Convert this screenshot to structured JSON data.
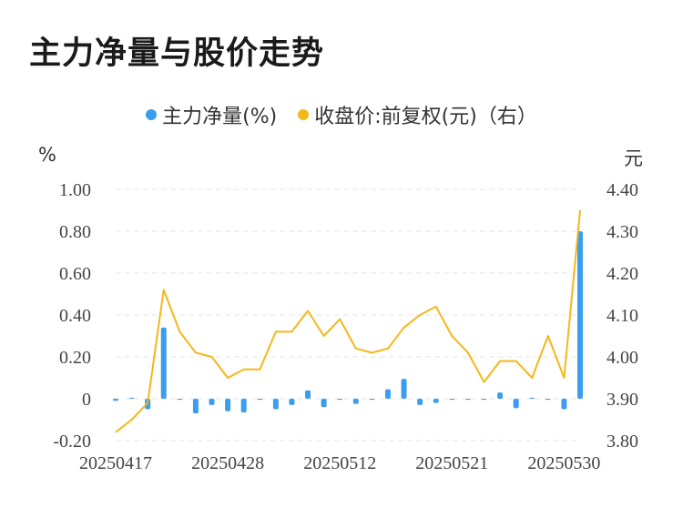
{
  "title": "主力净量与股价走势",
  "units": {
    "left": "%",
    "right": "元"
  },
  "colors": {
    "bar": "#3b9ded",
    "line": "#f5b71a",
    "grid": "#e6e6e6",
    "text": "#444444"
  },
  "chart_data": {
    "type": "bar+line",
    "legend": [
      "主力净量(%)",
      "收盘价:前复权(元)（右）"
    ],
    "legend_position": "top",
    "grid": true,
    "x_tick_labels": [
      "20250417",
      "20250428",
      "20250512",
      "20250521",
      "20250530"
    ],
    "x_tick_index": [
      0,
      7,
      14,
      21,
      28
    ],
    "y_left": {
      "min": -0.2,
      "max": 1.0,
      "ticks": [
        "-0.20",
        "0",
        "0.20",
        "0.40",
        "0.60",
        "0.80",
        "1.00"
      ],
      "tick_values": [
        -0.2,
        0,
        0.2,
        0.4,
        0.6,
        0.8,
        1.0
      ]
    },
    "y_right": {
      "min": 3.8,
      "max": 4.4,
      "ticks": [
        "3.80",
        "3.90",
        "4.00",
        "4.10",
        "4.20",
        "4.30",
        "4.40"
      ],
      "tick_values": [
        3.8,
        3.9,
        4.0,
        4.1,
        4.2,
        4.3,
        4.4
      ]
    },
    "series": [
      {
        "name": "主力净量(%)",
        "kind": "bar",
        "axis": "left",
        "values": [
          -0.01,
          0.005,
          -0.05,
          0.34,
          -0.005,
          -0.07,
          -0.03,
          -0.06,
          -0.065,
          -0.005,
          -0.05,
          -0.03,
          0.04,
          -0.04,
          -0.005,
          -0.025,
          -0.005,
          0.045,
          0.095,
          -0.03,
          -0.02,
          -0.005,
          -0.005,
          -0.005,
          0.03,
          -0.045,
          0.005,
          -0.005,
          -0.05,
          0.8
        ]
      },
      {
        "name": "收盘价:前复权(元)（右）",
        "kind": "line",
        "axis": "right",
        "values": [
          3.82,
          3.85,
          3.89,
          4.16,
          4.06,
          4.01,
          4.0,
          3.95,
          3.97,
          3.97,
          4.06,
          4.06,
          4.11,
          4.05,
          4.09,
          4.02,
          4.01,
          4.02,
          4.07,
          4.1,
          4.12,
          4.05,
          4.01,
          3.94,
          3.99,
          3.99,
          3.95,
          4.05,
          3.95,
          4.35
        ]
      }
    ]
  }
}
